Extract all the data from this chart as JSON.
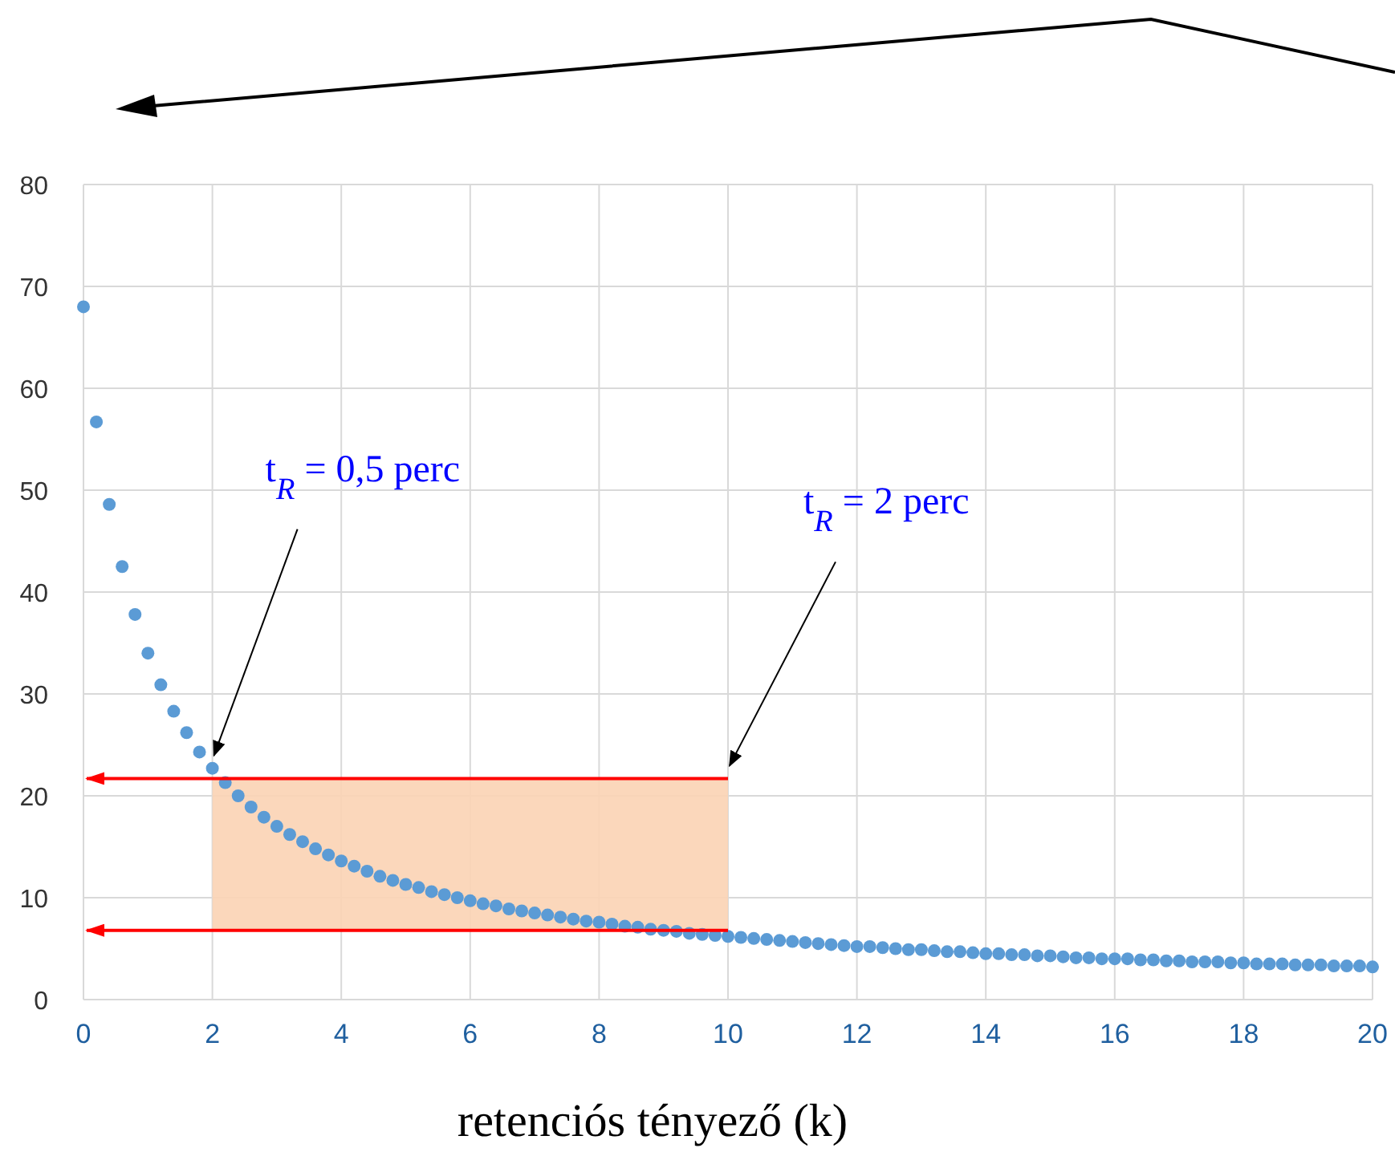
{
  "chart_data": {
    "type": "scatter",
    "xlabel": "retenciós tényező (k)",
    "x": [
      0,
      0.2,
      0.4,
      0.6,
      0.8,
      1,
      1.2,
      1.4,
      1.6,
      1.8,
      2,
      2.2,
      2.4,
      2.6,
      2.8,
      3,
      3.2,
      3.4,
      3.6,
      3.8,
      4,
      4.2,
      4.4,
      4.6,
      4.8,
      5,
      5.2,
      5.4,
      5.6,
      5.8,
      6,
      6.2,
      6.4,
      6.6,
      6.8,
      7,
      7.2,
      7.4,
      7.6,
      7.8,
      8,
      8.2,
      8.4,
      8.6,
      8.8,
      9,
      9.2,
      9.4,
      9.6,
      9.8,
      10,
      10.2,
      10.4,
      10.6,
      10.8,
      11,
      11.2,
      11.4,
      11.6,
      11.8,
      12,
      12.2,
      12.4,
      12.6,
      12.8,
      13,
      13.2,
      13.4,
      13.6,
      13.8,
      14,
      14.2,
      14.4,
      14.6,
      14.8,
      15,
      15.2,
      15.4,
      15.6,
      15.8,
      16,
      16.2,
      16.4,
      16.6,
      16.8,
      17,
      17.2,
      17.4,
      17.6,
      17.8,
      18,
      18.2,
      18.4,
      18.6,
      18.8,
      19,
      19.2,
      19.4,
      19.6,
      19.8,
      20
    ],
    "series": [
      {
        "color": "#5b9bd5",
        "values": [
          68.0,
          56.7,
          48.6,
          42.5,
          37.8,
          34.0,
          30.9,
          28.3,
          26.2,
          24.3,
          22.7,
          21.3,
          20.0,
          18.9,
          17.9,
          17.0,
          16.2,
          15.5,
          14.8,
          14.2,
          13.6,
          13.1,
          12.6,
          12.1,
          11.7,
          11.3,
          11.0,
          10.6,
          10.3,
          10.0,
          9.7,
          9.4,
          9.2,
          8.9,
          8.7,
          8.5,
          8.3,
          8.1,
          7.9,
          7.7,
          7.6,
          7.4,
          7.2,
          7.1,
          6.9,
          6.8,
          6.7,
          6.5,
          6.4,
          6.3,
          6.2,
          6.1,
          6.0,
          5.9,
          5.8,
          5.7,
          5.6,
          5.5,
          5.4,
          5.3,
          5.2,
          5.2,
          5.1,
          5.0,
          4.9,
          4.9,
          4.8,
          4.7,
          4.7,
          4.6,
          4.5,
          4.5,
          4.4,
          4.4,
          4.3,
          4.3,
          4.2,
          4.1,
          4.1,
          4.0,
          4.0,
          4.0,
          3.9,
          3.9,
          3.8,
          3.8,
          3.7,
          3.7,
          3.7,
          3.6,
          3.6,
          3.5,
          3.5,
          3.5,
          3.4,
          3.4,
          3.4,
          3.3,
          3.3,
          3.3,
          3.2
        ]
      }
    ],
    "xlim": [
      0,
      20
    ],
    "xticks": [
      0,
      2,
      4,
      6,
      8,
      10,
      12,
      14,
      16,
      18,
      20
    ],
    "ylim": [
      0,
      80
    ],
    "yticks": [
      0,
      10,
      20,
      30,
      40,
      50,
      60,
      70,
      80
    ],
    "grid": true,
    "marker": "circle",
    "ref_lines": [
      {
        "axis": "y",
        "value": 21.7,
        "color": "#ff0000"
      },
      {
        "axis": "y",
        "value": 6.8,
        "color": "#ff0000"
      }
    ],
    "bands": [
      {
        "axis": "x",
        "from": 2,
        "to": 10,
        "color": "#fbd3b4"
      }
    ],
    "annotations": [
      {
        "text": "t$_{R}$ = 0,5 perc",
        "x": 2,
        "y": 22.7
      },
      {
        "text": "t$_{R}$ = 2 perc",
        "x": 10,
        "y": 21.7
      }
    ]
  }
}
